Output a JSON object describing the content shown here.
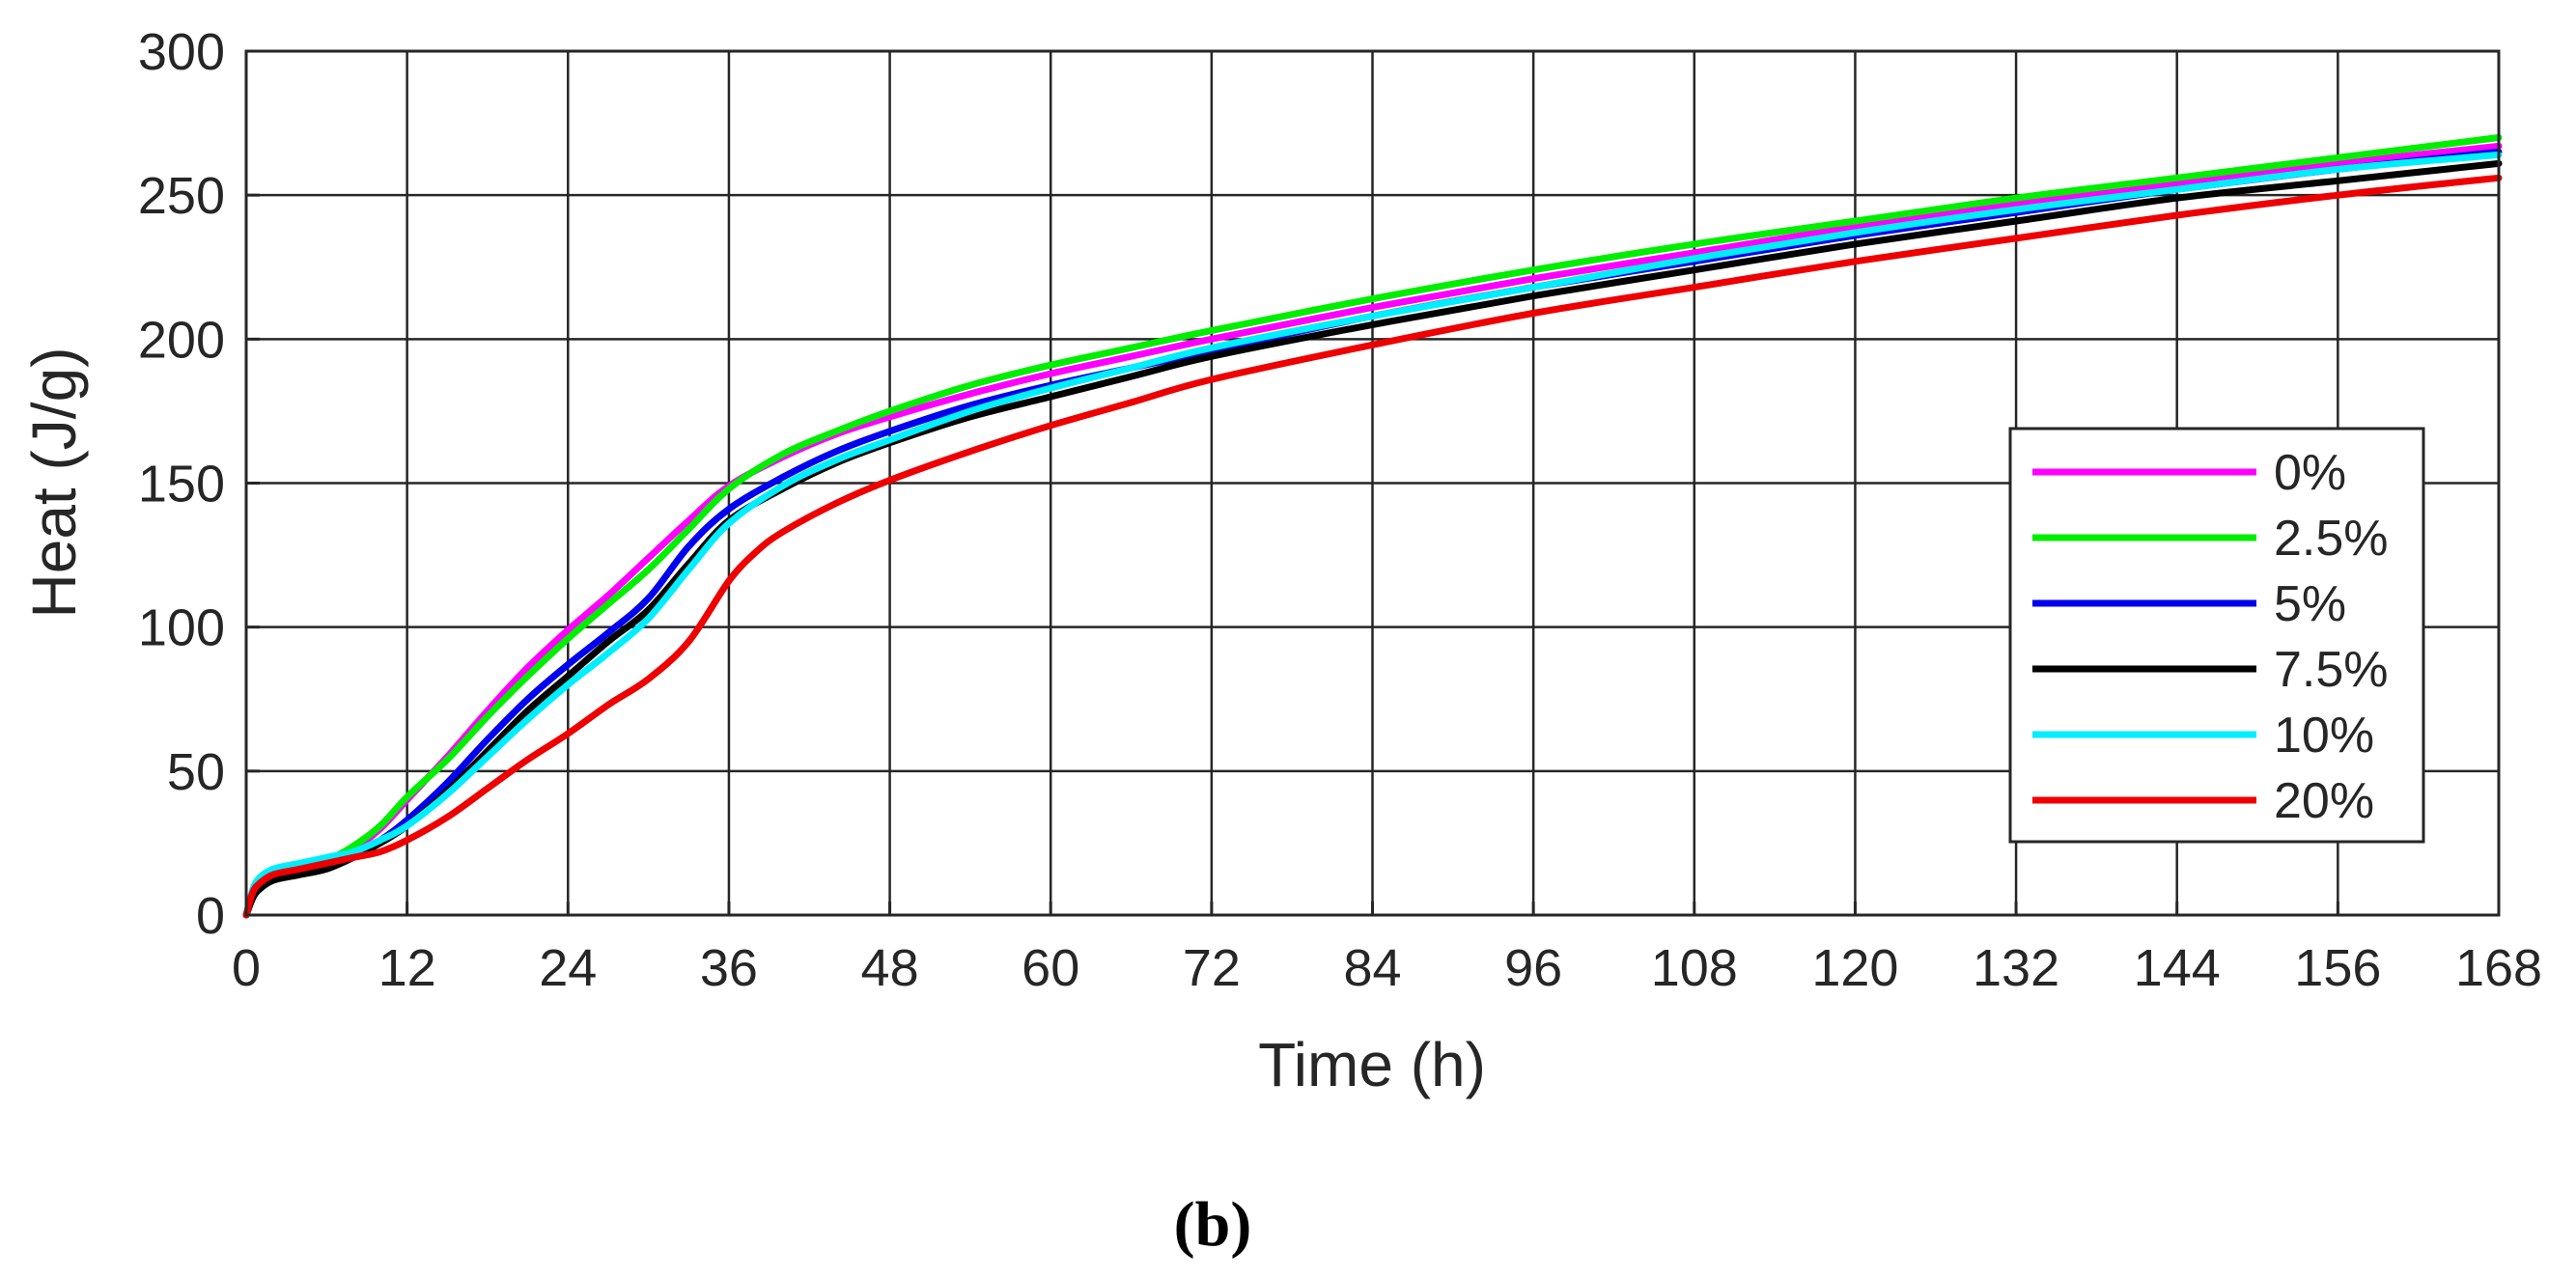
{
  "chart_data": {
    "type": "line",
    "title": "",
    "xlabel": "Time (h)",
    "ylabel": "Heat (J/g)",
    "xlim": [
      0,
      168
    ],
    "ylim": [
      0,
      300
    ],
    "xticks": [
      0,
      12,
      24,
      36,
      48,
      60,
      72,
      84,
      96,
      108,
      120,
      132,
      144,
      156,
      168
    ],
    "yticks": [
      0,
      50,
      100,
      150,
      200,
      250,
      300
    ],
    "xtick_labels": [
      "0",
      "12",
      "24",
      "36",
      "48",
      "60",
      "72",
      "84",
      "96",
      "108",
      "120",
      "132",
      "144",
      "156",
      "168"
    ],
    "ytick_labels": [
      "0",
      "50",
      "100",
      "150",
      "200",
      "250",
      "300"
    ],
    "grid": true,
    "legend_position": "right-middle",
    "caption": "(b)",
    "series": [
      {
        "name": "0%",
        "color": "#ff00ff",
        "x": [
          0,
          0.5,
          1,
          2,
          4,
          6,
          8,
          10,
          12,
          15,
          18,
          21,
          24,
          27,
          30,
          33,
          36,
          40,
          44,
          48,
          54,
          60,
          66,
          72,
          84,
          96,
          108,
          120,
          132,
          144,
          156,
          168
        ],
        "y": [
          0,
          8,
          12,
          15,
          17,
          19,
          23,
          30,
          40,
          55,
          71,
          86,
          99,
          111,
          124,
          137,
          149,
          159,
          167,
          173,
          181,
          188,
          194,
          200,
          211,
          221,
          230,
          239,
          247,
          254,
          261,
          267
        ]
      },
      {
        "name": "2.5%",
        "color": "#00ee00",
        "x": [
          0,
          0.5,
          1,
          2,
          4,
          6,
          8,
          10,
          12,
          15,
          18,
          21,
          24,
          27,
          30,
          33,
          36,
          40,
          44,
          48,
          54,
          60,
          66,
          72,
          84,
          96,
          108,
          120,
          132,
          144,
          156,
          168
        ],
        "y": [
          0,
          8,
          12,
          15,
          17,
          19,
          24,
          31,
          41,
          54,
          69,
          83,
          96,
          108,
          120,
          134,
          148,
          160,
          168,
          175,
          184,
          191,
          197,
          203,
          214,
          224,
          233,
          241,
          249,
          256,
          263,
          270
        ]
      },
      {
        "name": "5%",
        "color": "#0000ee",
        "x": [
          0,
          0.5,
          1,
          2,
          4,
          6,
          8,
          10,
          12,
          15,
          18,
          21,
          24,
          27,
          30,
          33,
          36,
          40,
          44,
          48,
          54,
          60,
          66,
          72,
          84,
          96,
          108,
          120,
          132,
          144,
          156,
          168
        ],
        "y": [
          0,
          7,
          11,
          14,
          16,
          18,
          21,
          26,
          33,
          46,
          61,
          75,
          87,
          98,
          110,
          128,
          141,
          152,
          161,
          168,
          177,
          184,
          190,
          196,
          208,
          218,
          227,
          236,
          244,
          252,
          259,
          265
        ]
      },
      {
        "name": "7.5%",
        "color": "#000000",
        "x": [
          0,
          0.5,
          1,
          2,
          4,
          6,
          8,
          10,
          12,
          15,
          18,
          21,
          24,
          27,
          30,
          33,
          36,
          40,
          44,
          48,
          54,
          60,
          66,
          72,
          84,
          96,
          108,
          120,
          132,
          144,
          156,
          168
        ],
        "y": [
          0,
          6,
          9,
          12,
          14,
          16,
          20,
          25,
          31,
          43,
          57,
          71,
          83,
          95,
          106,
          122,
          137,
          148,
          157,
          164,
          173,
          180,
          187,
          194,
          205,
          215,
          224,
          233,
          241,
          249,
          255,
          261
        ]
      },
      {
        "name": "10%",
        "color": "#00eeff",
        "x": [
          0,
          0.5,
          1,
          2,
          4,
          6,
          8,
          10,
          12,
          15,
          18,
          21,
          24,
          27,
          30,
          33,
          36,
          40,
          44,
          48,
          54,
          60,
          66,
          72,
          84,
          96,
          108,
          120,
          132,
          144,
          156,
          168
        ],
        "y": [
          0,
          9,
          13,
          16,
          18,
          20,
          22,
          26,
          31,
          42,
          55,
          68,
          80,
          91,
          103,
          120,
          136,
          149,
          158,
          165,
          175,
          183,
          190,
          197,
          208,
          218,
          228,
          237,
          245,
          252,
          259,
          264
        ]
      },
      {
        "name": "20%",
        "color": "#ee0000",
        "x": [
          0,
          0.5,
          1,
          2,
          4,
          6,
          8,
          10,
          12,
          15,
          18,
          21,
          24,
          27,
          30,
          33,
          36,
          38,
          40,
          44,
          48,
          54,
          60,
          66,
          72,
          84,
          96,
          108,
          120,
          132,
          144,
          156,
          168
        ],
        "y": [
          0,
          8,
          11,
          14,
          16,
          18,
          20,
          22,
          26,
          34,
          44,
          54,
          63,
          73,
          82,
          95,
          116,
          126,
          133,
          143,
          151,
          161,
          170,
          178,
          186,
          198,
          209,
          218,
          227,
          235,
          243,
          250,
          256
        ]
      }
    ]
  }
}
